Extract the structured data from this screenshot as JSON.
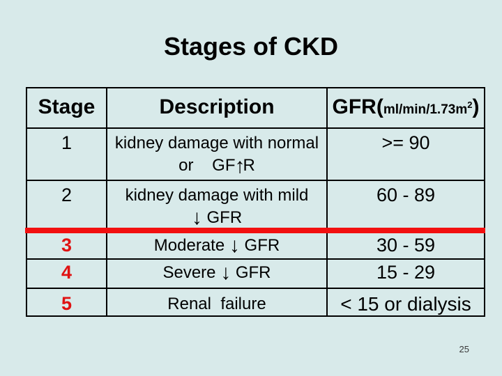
{
  "slide": {
    "title": "Stages of CKD",
    "page_number": "25",
    "colors": {
      "background": "#d8eaea",
      "text": "#000000",
      "stage_number_red": "#e01212",
      "divider_red": "#f21010",
      "table_border": "#000000"
    }
  },
  "table": {
    "headers": {
      "stage": "Stage",
      "description": "Description",
      "gfr_prefix": "GFR(",
      "gfr_unit": "ml/min/1.73m",
      "gfr_sup": "2",
      "gfr_suffix": ")"
    },
    "rows": [
      {
        "stage": "1",
        "line1": "kidney damage with normal",
        "line2_pre": "or    GF",
        "arrow": "↑",
        "line2_post": "R",
        "gfr": ">= 90"
      },
      {
        "stage": "2",
        "line1": "kidney damage with mild",
        "line2_pre": "",
        "arrow": "↓",
        "line2_post": " GFR",
        "gfr": "60 - 89"
      },
      {
        "stage": "3",
        "pre": "Moderate ",
        "arrow": "↓",
        "post": " GFR",
        "gfr": "30 - 59"
      },
      {
        "stage": "4",
        "pre": "Severe ",
        "arrow": "↓",
        "post": " GFR",
        "gfr": "15 - 29"
      },
      {
        "stage": "5",
        "pre": "Renal  failure",
        "gfr": "< 15 or dialysis"
      }
    ]
  }
}
